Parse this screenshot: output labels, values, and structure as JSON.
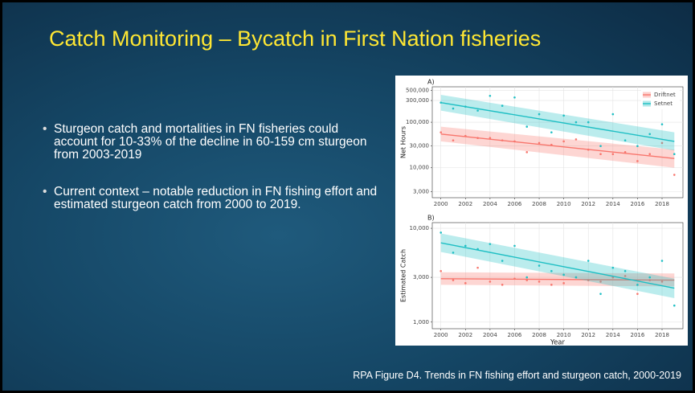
{
  "title": "Catch Monitoring – Bycatch in First Nation fisheries",
  "bullets": [
    "Sturgeon catch and mortalities in FN fisheries could account for 10-33% of the decline in 60-159 cm sturgeon from 2003-2019",
    "Current context – notable reduction in FN fishing effort and estimated sturgeon catch from 2000 to 2019."
  ],
  "caption": "RPA Figure D4. Trends in FN fishing effort and sturgeon catch, 2000-2019",
  "chart_data": [
    {
      "type": "scatter",
      "title": "A)",
      "ylabel": "Net Hours",
      "log_y": true,
      "grid": true,
      "legend": "top-right",
      "xlim": [
        1999.3,
        2019.7
      ],
      "xticks": [
        2000,
        2002,
        2004,
        2006,
        2008,
        2010,
        2012,
        2014,
        2016,
        2018
      ],
      "ylim": [
        2200,
        600000
      ],
      "yticks": [
        {
          "value": 3000,
          "label": "3,000"
        },
        {
          "value": 10000,
          "label": "10,000"
        },
        {
          "value": 30000,
          "label": "30,000"
        },
        {
          "value": 100000,
          "label": "100,000"
        },
        {
          "value": 300000,
          "label": "300,000"
        },
        {
          "value": 500000,
          "label": "500,000"
        }
      ],
      "series": [
        {
          "name": "Driftnet",
          "color": "#f8766d",
          "x": [
            2000,
            2001,
            2002,
            2003,
            2004,
            2005,
            2006,
            2007,
            2008,
            2009,
            2010,
            2011,
            2012,
            2013,
            2014,
            2015,
            2016,
            2017,
            2018,
            2019
          ],
          "values": [
            60000,
            40000,
            50000,
            45000,
            45000,
            40000,
            38000,
            22000,
            35000,
            32000,
            38000,
            42000,
            25000,
            20000,
            20000,
            22000,
            14000,
            20000,
            35000,
            7000
          ],
          "trend": {
            "x": [
              2000,
              2019
            ],
            "values": [
              55000,
              16000
            ],
            "lower": [
              38000,
              10000
            ],
            "upper": [
              80000,
              25000
            ]
          }
        },
        {
          "name": "Setnet",
          "color": "#1fbfc4",
          "x": [
            2000,
            2001,
            2002,
            2003,
            2004,
            2005,
            2006,
            2007,
            2008,
            2009,
            2010,
            2011,
            2012,
            2013,
            2014,
            2015,
            2016,
            2017,
            2018,
            2019
          ],
          "values": [
            270000,
            200000,
            220000,
            180000,
            380000,
            230000,
            350000,
            80000,
            150000,
            60000,
            140000,
            100000,
            100000,
            30000,
            150000,
            40000,
            30000,
            55000,
            90000,
            20000
          ],
          "trend": {
            "x": [
              2000,
              2019
            ],
            "values": [
              270000,
              38000
            ],
            "lower": [
              180000,
              24000
            ],
            "upper": [
              400000,
              60000
            ]
          }
        }
      ]
    },
    {
      "type": "scatter",
      "title": "B)",
      "xlabel": "Year",
      "ylabel": "Estimated Catch",
      "log_y": true,
      "grid": true,
      "xlim": [
        1999.3,
        2019.7
      ],
      "xticks": [
        2000,
        2002,
        2004,
        2006,
        2008,
        2010,
        2012,
        2014,
        2016,
        2018
      ],
      "ylim": [
        850,
        11500
      ],
      "yticks": [
        {
          "value": 1000,
          "label": "1,000"
        },
        {
          "value": 3000,
          "label": "3,000"
        },
        {
          "value": 10000,
          "label": "10,000"
        }
      ],
      "series": [
        {
          "name": "Driftnet",
          "color": "#f8766d",
          "x": [
            2000,
            2001,
            2002,
            2003,
            2004,
            2005,
            2006,
            2007,
            2008,
            2009,
            2010,
            2011,
            2012,
            2013,
            2014,
            2015,
            2016,
            2017,
            2018
          ],
          "values": [
            3500,
            2800,
            2600,
            3800,
            2700,
            2500,
            2900,
            2800,
            2700,
            2500,
            2600,
            3000,
            2800,
            2700,
            3000,
            3100,
            2000,
            2800,
            2700
          ],
          "trend": {
            "x": [
              2000,
              2019
            ],
            "values": [
              2900,
              2800
            ],
            "lower": [
              2500,
              2400
            ],
            "upper": [
              3400,
              3300
            ]
          }
        },
        {
          "name": "Setnet",
          "color": "#1fbfc4",
          "x": [
            2000,
            2001,
            2002,
            2003,
            2004,
            2005,
            2006,
            2007,
            2008,
            2009,
            2010,
            2011,
            2012,
            2013,
            2014,
            2015,
            2016,
            2017,
            2018,
            2019
          ],
          "values": [
            9000,
            5500,
            6500,
            6000,
            6800,
            4500,
            6500,
            3000,
            4000,
            3500,
            3200,
            3000,
            4500,
            2000,
            3800,
            3500,
            2500,
            3000,
            4500,
            1500
          ],
          "trend": {
            "x": [
              2000,
              2019
            ],
            "values": [
              7000,
              2300
            ],
            "lower": [
              5600,
              1800
            ],
            "upper": [
              8800,
              2900
            ]
          }
        }
      ]
    }
  ]
}
